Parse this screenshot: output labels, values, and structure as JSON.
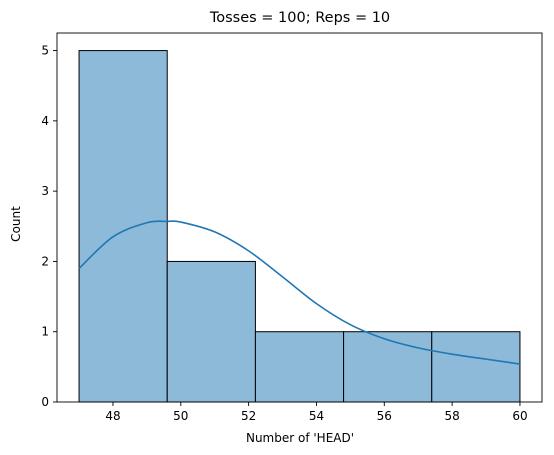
{
  "chart_data": {
    "type": "bar",
    "title": "Tosses = 100; Reps = 10",
    "xlabel": "Number of 'HEAD'",
    "ylabel": "Count",
    "bins": [
      {
        "start": 47.0,
        "end": 49.6,
        "count": 5
      },
      {
        "start": 49.6,
        "end": 52.2,
        "count": 2
      },
      {
        "start": 52.2,
        "end": 54.8,
        "count": 1
      },
      {
        "start": 54.8,
        "end": 57.4,
        "count": 1
      },
      {
        "start": 57.4,
        "end": 60.0,
        "count": 1
      }
    ],
    "kde": {
      "x": [
        47,
        48,
        49,
        49.6,
        50,
        51,
        52,
        53,
        54,
        55,
        56,
        57,
        58,
        59,
        60
      ],
      "y": [
        1.9,
        2.35,
        2.55,
        2.57,
        2.56,
        2.42,
        2.15,
        1.78,
        1.4,
        1.1,
        0.9,
        0.77,
        0.68,
        0.61,
        0.54
      ]
    },
    "xlim": [
      46.35,
      60.65
    ],
    "ylim": [
      0,
      5.25
    ],
    "xticks": [
      48,
      50,
      52,
      54,
      56,
      58,
      60
    ],
    "yticks": [
      0,
      1,
      2,
      3,
      4,
      5
    ],
    "grid": false,
    "bar_fill": "#8dbad9",
    "bar_edge": "#000000",
    "kde_color": "#1f77b4"
  }
}
